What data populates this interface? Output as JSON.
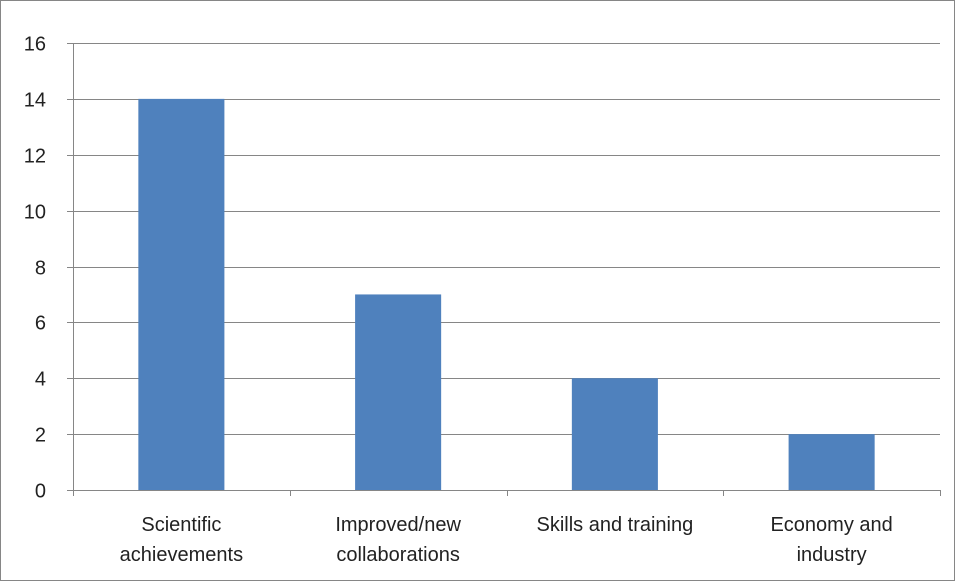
{
  "chart_data": {
    "type": "bar",
    "categories": [
      [
        "Scientific",
        "achievements"
      ],
      [
        "Improved/new",
        "collaborations"
      ],
      [
        "Skills and training"
      ],
      [
        "Economy and",
        "industry"
      ]
    ],
    "values": [
      14,
      7,
      4,
      2
    ],
    "yticks": [
      "0",
      "2",
      "4",
      "6",
      "8",
      "10",
      "12",
      "14",
      "16"
    ],
    "ylim": [
      0,
      16
    ],
    "grid": true,
    "bar_color": "#4F81BD",
    "gridline_color": "#868686",
    "frame_color": "#868686"
  }
}
